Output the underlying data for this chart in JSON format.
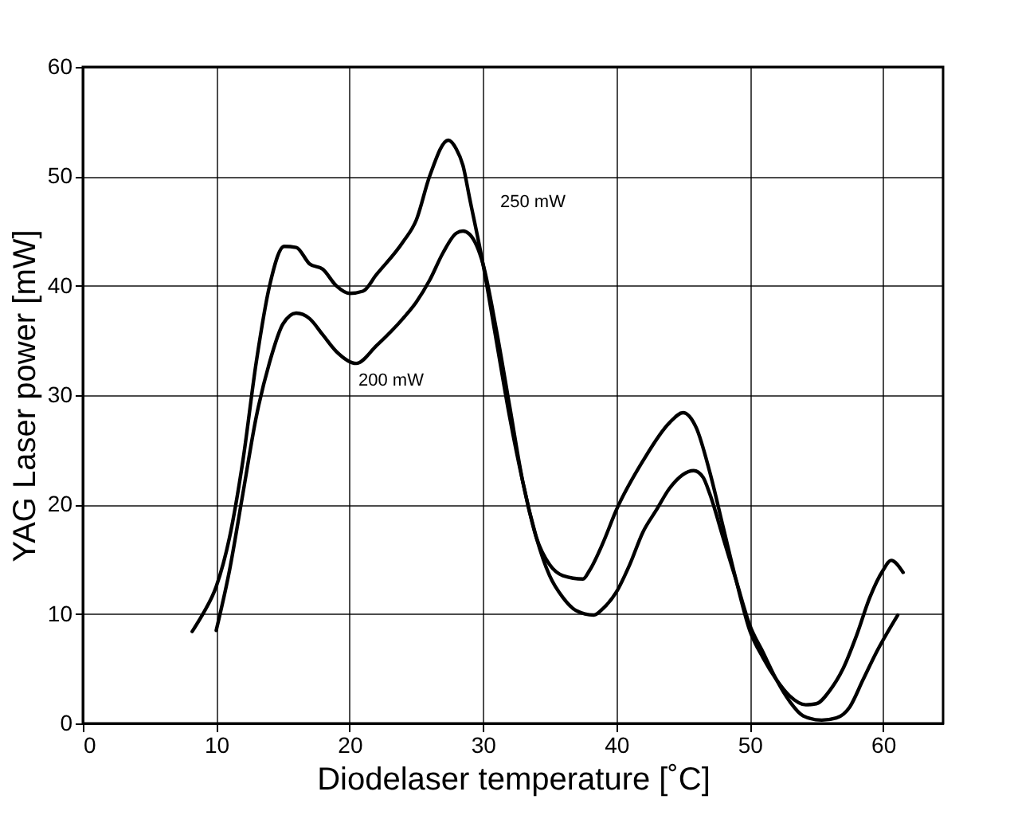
{
  "chart_data": {
    "type": "line",
    "xlabel": "Diodelaser temperature [˚C]",
    "ylabel": "YAG Laser power [mW]",
    "xlim": [
      0,
      64.5
    ],
    "ylim": [
      0,
      60
    ],
    "xticks": [
      0,
      10,
      20,
      30,
      40,
      50,
      60
    ],
    "yticks": [
      0,
      10,
      20,
      30,
      40,
      50,
      60
    ],
    "grid": true,
    "marker": "none",
    "line_style": "solid",
    "series": [
      {
        "color": "#000000",
        "x": [
          8.2,
          9,
          10,
          11,
          12,
          13,
          14,
          15.1,
          16,
          17,
          18,
          19,
          20,
          21,
          22,
          24,
          25,
          26,
          27.4,
          28,
          28.5,
          29,
          30,
          31,
          32,
          33,
          34,
          35,
          36,
          37.5,
          38,
          39,
          40,
          42,
          44,
          45,
          46,
          47,
          48,
          49,
          50,
          51,
          52,
          53,
          54.2,
          55,
          56,
          57,
          58,
          59,
          60,
          60.6,
          61.5
        ],
        "values": [
          8.4,
          10,
          12.5,
          17,
          24,
          33,
          40,
          43.6,
          43.5,
          42,
          41.5,
          40,
          39.3,
          39.5,
          41,
          44,
          46,
          50,
          53.3,
          52.5,
          51,
          48,
          42,
          35,
          28,
          22,
          17,
          14.5,
          13.5,
          13.2,
          14,
          16.5,
          19.5,
          24,
          27.5,
          28.4,
          27,
          23,
          18,
          13,
          8.5,
          6,
          4,
          2.5,
          1.7,
          1.8,
          3,
          5,
          8,
          11.5,
          14,
          14.9,
          13.8
        ]
      },
      {
        "color": "#000000",
        "x": [
          10,
          11,
          12,
          13,
          14,
          15,
          16,
          17,
          18,
          19,
          20.5,
          22,
          24,
          25,
          26,
          27,
          28,
          28.5,
          29,
          30,
          31,
          32,
          33,
          34,
          35,
          36,
          37,
          38.3,
          39,
          40,
          41,
          42,
          43,
          44,
          45.8,
          46.5,
          47,
          48,
          49,
          50,
          51,
          52,
          53,
          54,
          55.4,
          56.5,
          57.5,
          58.5,
          59.5,
          61.1
        ],
        "values": [
          8.5,
          14,
          21,
          28,
          33,
          36.5,
          37.5,
          37,
          35.5,
          34,
          32.9,
          34.5,
          37,
          38.5,
          40.5,
          43,
          44.8,
          45,
          44.7,
          42,
          36,
          29,
          22,
          17,
          13.5,
          11.5,
          10.3,
          9.9,
          10.5,
          12,
          14.5,
          17.5,
          19.5,
          21.5,
          23.1,
          22.5,
          21,
          17,
          13,
          9,
          6.5,
          4,
          2,
          0.7,
          0.3,
          0.5,
          1.5,
          4,
          6.5,
          9.9
        ]
      }
    ],
    "annotations": [
      "250 mW",
      "200 mW"
    ]
  }
}
